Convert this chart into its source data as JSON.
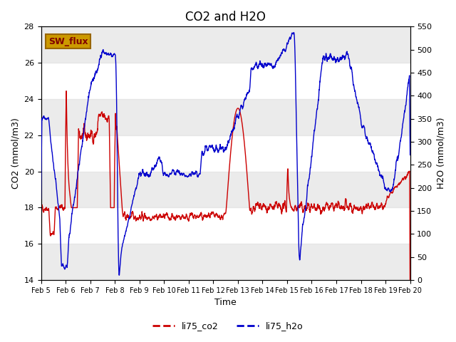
{
  "title": "CO2 and H2O",
  "xlabel": "Time",
  "ylabel_left": "CO2 (mmol/m3)",
  "ylabel_right": "H2O (mmol/m3)",
  "ylim_left": [
    14,
    28
  ],
  "ylim_right": [
    0,
    550
  ],
  "yticks_left": [
    14,
    16,
    18,
    20,
    22,
    24,
    26,
    28
  ],
  "yticks_right": [
    0,
    50,
    100,
    150,
    200,
    250,
    300,
    350,
    400,
    450,
    500,
    550
  ],
  "xtick_labels": [
    "Feb 5",
    "Feb 6",
    "Feb 7",
    "Feb 8",
    "Feb 9",
    "Feb 10",
    "Feb 11",
    "Feb 12",
    "Feb 13",
    "Feb 14",
    "Feb 15",
    "Feb 16",
    "Feb 17",
    "Feb 18",
    "Feb 19",
    "Feb 20"
  ],
  "color_co2": "#cc0000",
  "color_h2o": "#0000cc",
  "legend_labels": [
    "li75_co2",
    "li75_h2o"
  ],
  "sw_flux_label": "SW_flux",
  "sw_flux_color": "#cc9900",
  "sw_flux_text_color": "#800000",
  "bg_band_color": "#d8d8d8",
  "bg_band_alpha": 0.5,
  "title_fontsize": 12
}
